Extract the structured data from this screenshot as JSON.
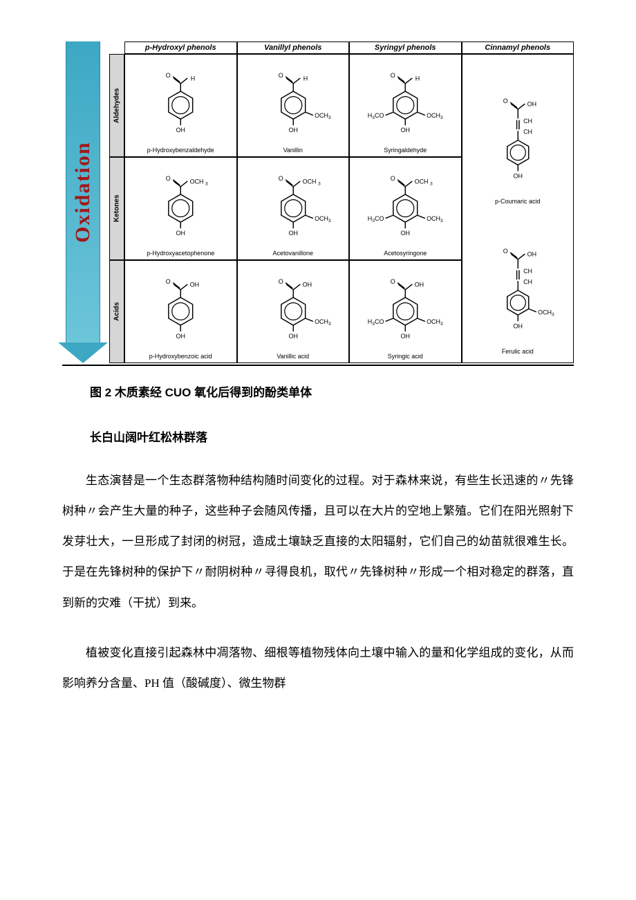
{
  "figure": {
    "arrow_label": "Oxidation",
    "arrow_fill_top": "#6cc5d9",
    "arrow_fill_bottom": "#3da8c4",
    "arrow_text_color": "#a01818",
    "arrow_fontsize": 30,
    "border_color": "#000000",
    "rowlabel_bg": "#d6d6d6",
    "header_fontsize": 11,
    "cell_fontsize": 9,
    "columns": [
      {
        "label": "p-Hydroxyl phenols"
      },
      {
        "label": "Vanillyl phenols"
      },
      {
        "label": "Syringyl phenols"
      },
      {
        "label": "Cinnamyl phenols"
      }
    ],
    "rows": [
      {
        "label": "Aldehydes"
      },
      {
        "label": "Ketones"
      },
      {
        "label": "Acids"
      }
    ],
    "cells": {
      "r0c0": {
        "name": "p-Hydroxybenzaldehyde",
        "top": "aldehyde",
        "left_sub": false,
        "right_sub": false
      },
      "r0c1": {
        "name": "Vanillin",
        "top": "aldehyde",
        "left_sub": false,
        "right_sub": true
      },
      "r0c2": {
        "name": "Syringaldehyde",
        "top": "aldehyde",
        "left_sub": true,
        "right_sub": true
      },
      "r1c0": {
        "name": "p-Hydroxyacetophenone",
        "top": "ketone",
        "left_sub": false,
        "right_sub": false
      },
      "r1c1": {
        "name": "Acetovanillone",
        "top": "ketone",
        "left_sub": false,
        "right_sub": true
      },
      "r1c2": {
        "name": "Acetosyringone",
        "top": "ketone",
        "left_sub": true,
        "right_sub": true
      },
      "r2c0": {
        "name": "p-Hydroxybenzoic acid",
        "top": "acid",
        "left_sub": false,
        "right_sub": false
      },
      "r2c1": {
        "name": "Vanillic acid",
        "top": "acid",
        "left_sub": false,
        "right_sub": true
      },
      "r2c2": {
        "name": "Syringic acid",
        "top": "acid",
        "left_sub": true,
        "right_sub": true
      }
    },
    "cinnamyl": [
      {
        "name": "p-Coumaric acid",
        "right_sub": false
      },
      {
        "name": "Ferulic acid",
        "right_sub": true
      }
    ]
  },
  "caption": "图 2 木质素经 CUO 氧化后得到的酚类单体",
  "heading": "长白山阔叶红松林群落",
  "para1": "生态演替是一个生态群落物种结构随时间变化的过程。对于森林来说，有些生长迅速的〃先锋树种〃会产生大量的种子，这些种子会随风传播，且可以在大片的空地上繁殖。它们在阳光照射下发芽壮大，一旦形成了封闭的树冠，造成土壤缺乏直接的太阳辐射，它们自己的幼苗就很难生长。于是在先锋树种的保护下〃耐阴树种〃寻得良机，取代〃先锋树种〃形成一个相对稳定的群落，直到新的灾难（干扰）到来。",
  "para2": "植被变化直接引起森林中凋落物、细根等植物残体向土壤中输入的量和化学组成的变化，从而影响养分含量、PH 值（酸碱度）、微生物群"
}
